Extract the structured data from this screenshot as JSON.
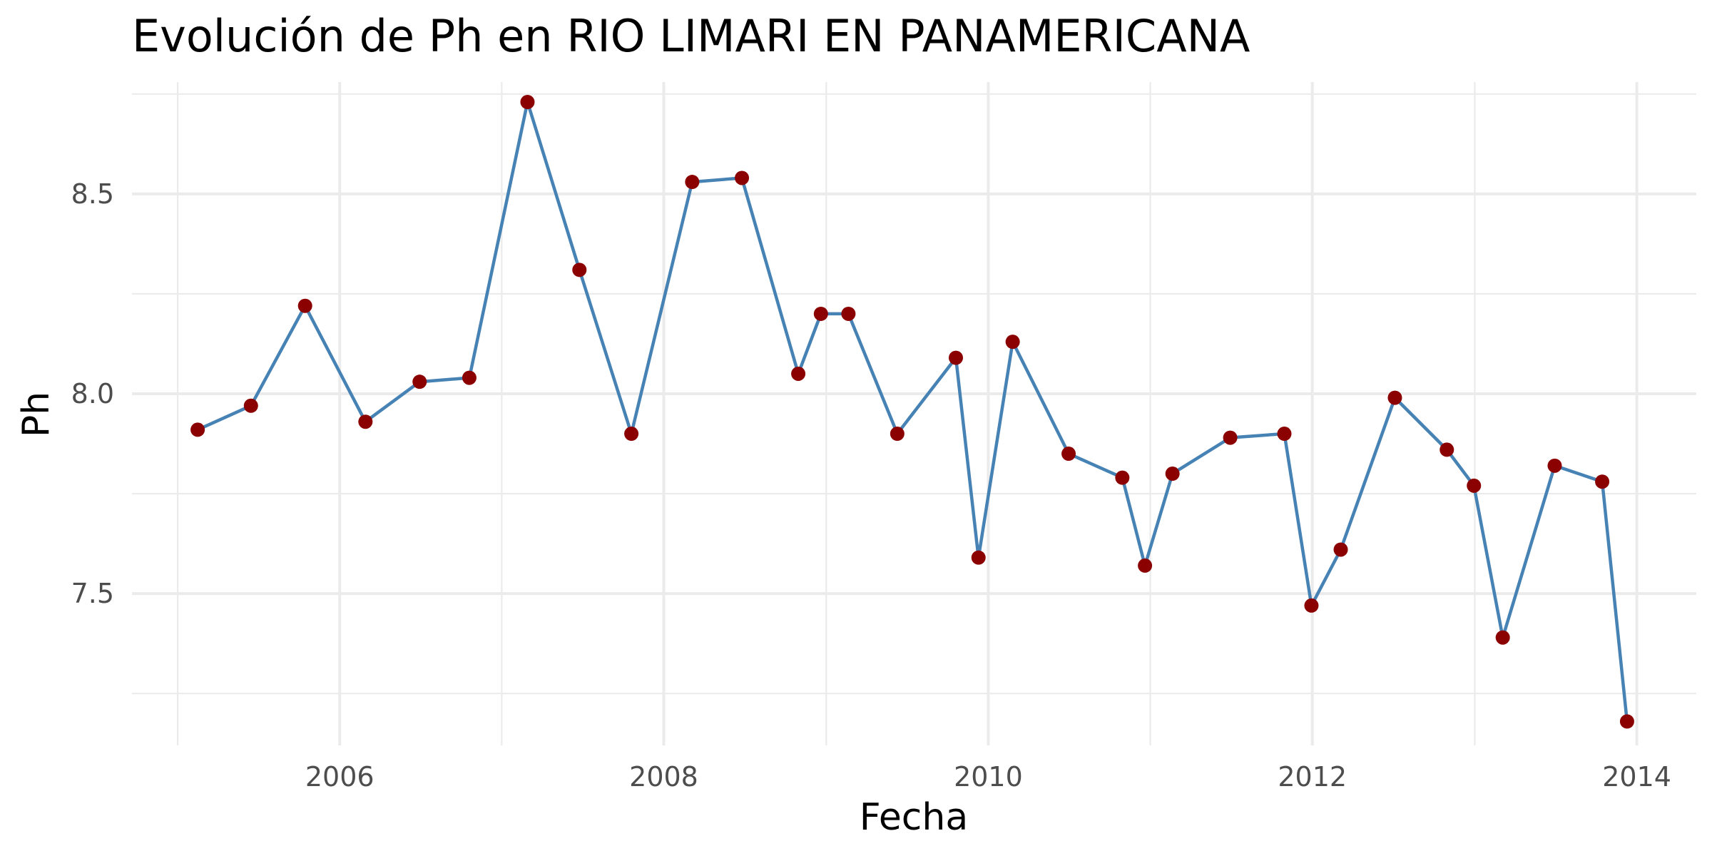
{
  "chart_data": {
    "type": "line",
    "title": "Evolución de Ph en RIO LIMARI EN PANAMERICANA",
    "xlabel": "Fecha",
    "ylabel": "Ph",
    "xlim": [
      "2004-09-20",
      "2014-05-15"
    ],
    "ylim": [
      7.12,
      8.78
    ],
    "x_ticks": [
      {
        "label": "2006",
        "date": "2006-01-01"
      },
      {
        "label": "2008",
        "date": "2008-01-01"
      },
      {
        "label": "2010",
        "date": "2010-01-01"
      },
      {
        "label": "2012",
        "date": "2012-01-01"
      },
      {
        "label": "2014",
        "date": "2014-01-01"
      }
    ],
    "x_minor_ticks": [
      "2005-01-01",
      "2007-01-01",
      "2009-01-01",
      "2011-01-01",
      "2013-01-01"
    ],
    "y_ticks": [
      {
        "label": "7.5",
        "value": 7.5
      },
      {
        "label": "8.0",
        "value": 8.0
      },
      {
        "label": "8.5",
        "value": 8.5
      }
    ],
    "y_minor_ticks": [
      7.25,
      7.75,
      8.25,
      8.75
    ],
    "grid": true,
    "legend": "none",
    "line_color": "#4682b4",
    "point_color": "#8b0000",
    "series": [
      {
        "points": [
          {
            "x": "2005-02-15",
            "y": 7.91
          },
          {
            "x": "2005-06-15",
            "y": 7.97
          },
          {
            "x": "2005-10-15",
            "y": 8.22
          },
          {
            "x": "2006-02-28",
            "y": 7.93
          },
          {
            "x": "2006-06-30",
            "y": 8.03
          },
          {
            "x": "2006-10-20",
            "y": 8.04
          },
          {
            "x": "2007-02-28",
            "y": 8.73
          },
          {
            "x": "2007-06-25",
            "y": 8.31
          },
          {
            "x": "2007-10-20",
            "y": 7.9
          },
          {
            "x": "2008-03-05",
            "y": 8.53
          },
          {
            "x": "2008-06-25",
            "y": 8.54
          },
          {
            "x": "2008-10-30",
            "y": 8.05
          },
          {
            "x": "2008-12-20",
            "y": 8.2
          },
          {
            "x": "2009-02-20",
            "y": 8.2
          },
          {
            "x": "2009-06-10",
            "y": 7.9
          },
          {
            "x": "2009-10-20",
            "y": 8.09
          },
          {
            "x": "2009-12-10",
            "y": 7.59
          },
          {
            "x": "2010-02-25",
            "y": 8.13
          },
          {
            "x": "2010-07-01",
            "y": 7.85
          },
          {
            "x": "2010-10-30",
            "y": 7.79
          },
          {
            "x": "2010-12-20",
            "y": 7.57
          },
          {
            "x": "2011-02-20",
            "y": 7.8
          },
          {
            "x": "2011-06-30",
            "y": 7.89
          },
          {
            "x": "2011-10-30",
            "y": 7.9
          },
          {
            "x": "2011-12-30",
            "y": 7.47
          },
          {
            "x": "2012-03-05",
            "y": 7.61
          },
          {
            "x": "2012-07-05",
            "y": 7.99
          },
          {
            "x": "2012-10-30",
            "y": 7.86
          },
          {
            "x": "2012-12-30",
            "y": 7.77
          },
          {
            "x": "2013-03-05",
            "y": 7.39
          },
          {
            "x": "2013-06-30",
            "y": 7.82
          },
          {
            "x": "2013-10-15",
            "y": 7.78
          },
          {
            "x": "2013-12-10",
            "y": 7.18
          }
        ]
      }
    ]
  }
}
